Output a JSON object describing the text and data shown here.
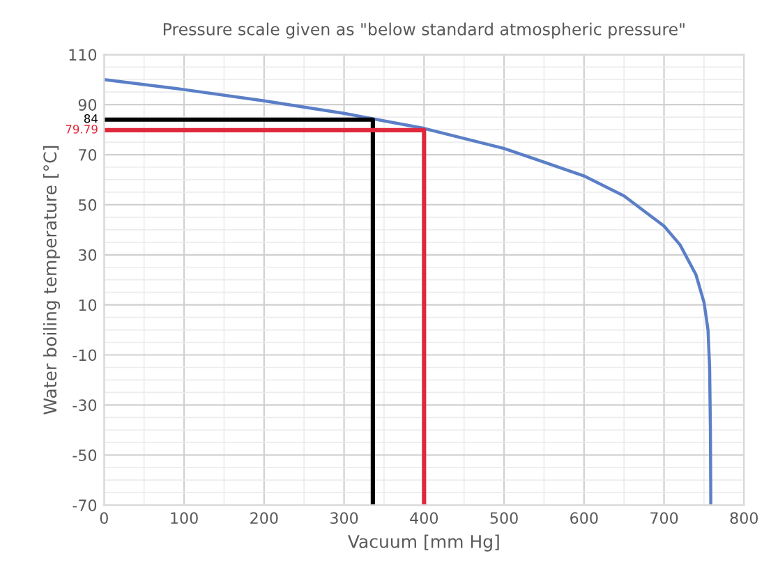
{
  "chart_data": {
    "type": "line",
    "title": "Pressure scale given as \"below standard atmospheric pressure\"",
    "xlabel": "Vacuum [mm Hg]",
    "ylabel": "Water boiling temperature [°C]",
    "xlim": [
      0,
      800
    ],
    "xticks": [
      0,
      100,
      200,
      300,
      400,
      500,
      600,
      700,
      800
    ],
    "ylim": [
      -70,
      110
    ],
    "yticks": [
      -70,
      -50,
      -30,
      -10,
      10,
      30,
      50,
      70,
      90,
      110
    ],
    "grid": true,
    "legend": false,
    "marker": "none",
    "line_style": "solid",
    "series": [
      {
        "color": "#5b7fc7",
        "x": [
          0,
          100,
          200,
          300,
          400,
          500,
          600,
          650,
          700,
          720,
          740,
          750,
          755,
          757,
          758,
          758.5
        ],
        "values": [
          100,
          96,
          91.5,
          86.5,
          80.5,
          72.5,
          61.5,
          53.5,
          41.5,
          34,
          22,
          11,
          0,
          -15,
          -40,
          -70
        ]
      },
      {
        "color": "#000000",
        "x": [
          0,
          336,
          336
        ],
        "values": [
          84,
          84,
          -70
        ]
      },
      {
        "color": "#e0283c",
        "x": [
          0,
          400,
          400
        ],
        "values": [
          79.79,
          79.79,
          -70
        ]
      }
    ],
    "annotations": [
      {
        "text": "84",
        "x": 0,
        "y": 84
      },
      {
        "text": "79.79",
        "x": 0,
        "y": 79.79
      }
    ]
  }
}
